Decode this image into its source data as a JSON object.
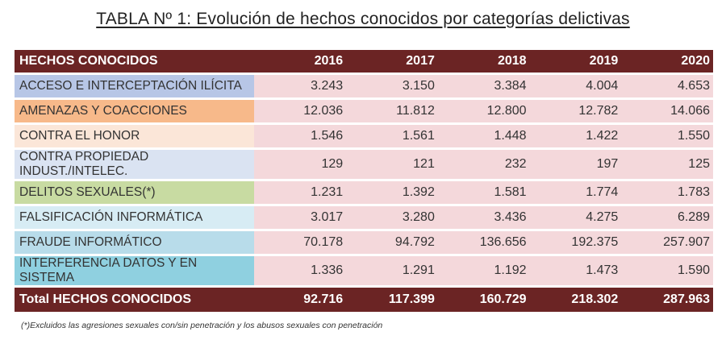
{
  "title": "TABLA Nº 1: Evolución de hechos conocidos por categorías delictivas",
  "header": {
    "category": "HECHOS CONOCIDOS",
    "years": [
      "2016",
      "2017",
      "2018",
      "2019",
      "2020"
    ]
  },
  "rows": [
    {
      "label": "ACCESO  E INTERCEPTACIÓN ILÍCITA",
      "color": "#b7c6e6",
      "values": [
        "3.243",
        "3.150",
        "3.384",
        "4.004",
        "4.653"
      ]
    },
    {
      "label": "AMENAZAS Y COACCIONES",
      "color": "#f7b98a",
      "values": [
        "12.036",
        "11.812",
        "12.800",
        "12.782",
        "14.066"
      ]
    },
    {
      "label": "CONTRA EL HONOR",
      "color": "#fbe6d8",
      "values": [
        "1.546",
        "1.561",
        "1.448",
        "1.422",
        "1.550"
      ]
    },
    {
      "label": "CONTRA PROPIEDAD INDUST./INTELEC.",
      "color": "#dae3f2",
      "values": [
        "129",
        "121",
        "232",
        "197",
        "125"
      ]
    },
    {
      "label": "DELITOS SEXUALES(*)",
      "color": "#c8dba2",
      "values": [
        "1.231",
        "1.392",
        "1.581",
        "1.774",
        "1.783"
      ]
    },
    {
      "label": "FALSIFICACIÓN INFORMÁTICA",
      "color": "#d7ecf4",
      "values": [
        "3.017",
        "3.280",
        "3.436",
        "4.275",
        "6.289"
      ]
    },
    {
      "label": "FRAUDE INFORMÁTICO",
      "color": "#b8dcea",
      "values": [
        "70.178",
        "94.792",
        "136.656",
        "192.375",
        "257.907"
      ]
    },
    {
      "label": "INTERFERENCIA DATOS Y EN SISTEMA",
      "color": "#8fd0e0",
      "values": [
        "1.336",
        "1.291",
        "1.192",
        "1.473",
        "1.590"
      ]
    }
  ],
  "total": {
    "label": "Total HECHOS CONOCIDOS",
    "values": [
      "92.716",
      "117.399",
      "160.729",
      "218.302",
      "287.963"
    ]
  },
  "footnote": "(*)Excluidos las agresiones sexuales con/sin penetración y los abusos sexuales con penetración",
  "colors": {
    "header_bg": "#6b2424",
    "cell_bg": "#f4d8db"
  }
}
